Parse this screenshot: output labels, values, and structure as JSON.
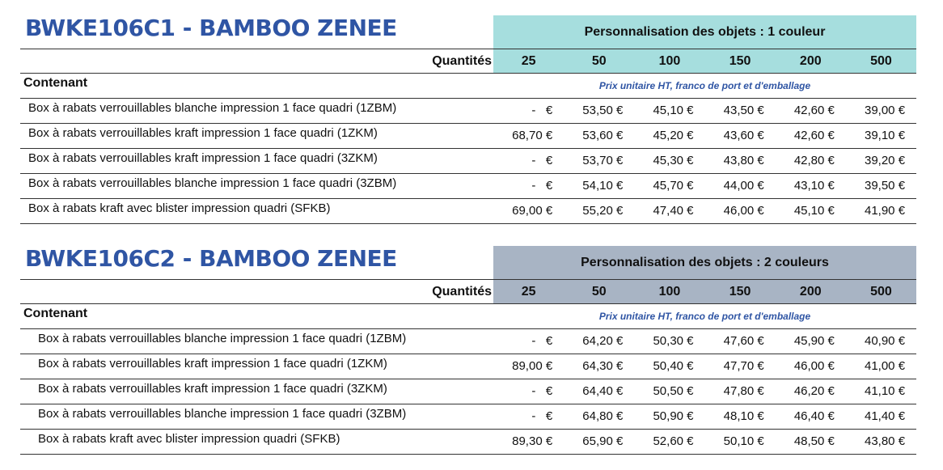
{
  "sections": [
    {
      "title": "BWKE106C1 - BAMBOO ZENEE",
      "personnalisation": "Personnalisation des objets : 1 couleur",
      "header_color": "#a6dede",
      "quantites_label": "Quantités",
      "quantites": [
        "25",
        "50",
        "100",
        "150",
        "200",
        "500"
      ],
      "contenant_label": "Contenant",
      "prix_note": "Prix unitaire HT, franco de port et d'emballage",
      "rows": [
        {
          "label": "Box à rabats verrouillables blanche impression 1 face quadri (1ZBM)",
          "prices": [
            "-   €",
            "53,50 €",
            "45,10 €",
            "43,50 €",
            "42,60 €",
            "39,00 €"
          ]
        },
        {
          "label": "Box à rabats verrouillables kraft impression 1 face quadri (1ZKM)",
          "prices": [
            "68,70 €",
            "53,60 €",
            "45,20 €",
            "43,60 €",
            "42,60 €",
            "39,10 €"
          ]
        },
        {
          "label": "Box à rabats verrouillables kraft impression 1 face quadri (3ZKM)",
          "prices": [
            "-   €",
            "53,70 €",
            "45,30 €",
            "43,80 €",
            "42,80 €",
            "39,20 €"
          ]
        },
        {
          "label": "Box à rabats verrouillables blanche impression 1 face quadri (3ZBM)",
          "prices": [
            "-   €",
            "54,10 €",
            "45,70 €",
            "44,00 €",
            "43,10 €",
            "39,50 €"
          ]
        },
        {
          "label": "Box à rabats kraft avec blister impression quadri (SFKB)",
          "prices": [
            "69,00 €",
            "55,20 €",
            "47,40 €",
            "46,00 €",
            "45,10 €",
            "41,90 €"
          ]
        }
      ]
    },
    {
      "title": "BWKE106C2 - BAMBOO ZENEE",
      "personnalisation": "Personnalisation des objets : 2 couleurs",
      "header_color": "#a8b4c4",
      "quantites_label": "Quantités",
      "quantites": [
        "25",
        "50",
        "100",
        "150",
        "200",
        "500"
      ],
      "contenant_label": "Contenant",
      "prix_note": "Prix unitaire HT, franco de port et d'emballage",
      "rows": [
        {
          "label": "Box à rabats verrouillables blanche impression 1 face quadri (1ZBM)",
          "prices": [
            "-   €",
            "64,20 €",
            "50,30 €",
            "47,60 €",
            "45,90 €",
            "40,90 €"
          ]
        },
        {
          "label": "Box à rabats verrouillables kraft impression 1 face quadri (1ZKM)",
          "prices": [
            "89,00 €",
            "64,30 €",
            "50,40 €",
            "47,70 €",
            "46,00 €",
            "41,00 €"
          ]
        },
        {
          "label": "Box à rabats verrouillables kraft impression 1 face quadri (3ZKM)",
          "prices": [
            "-   €",
            "64,40 €",
            "50,50 €",
            "47,80 €",
            "46,20 €",
            "41,10 €"
          ]
        },
        {
          "label": "Box à rabats verrouillables blanche impression 1 face quadri (3ZBM)",
          "prices": [
            "-   €",
            "64,80 €",
            "50,90 €",
            "48,10 €",
            "46,40 €",
            "41,40 €"
          ]
        },
        {
          "label": "Box à rabats kraft avec blister impression quadri (SFKB)",
          "prices": [
            "89,30 €",
            "65,90 €",
            "52,60 €",
            "50,10 €",
            "48,50 €",
            "43,80 €"
          ]
        }
      ]
    }
  ]
}
